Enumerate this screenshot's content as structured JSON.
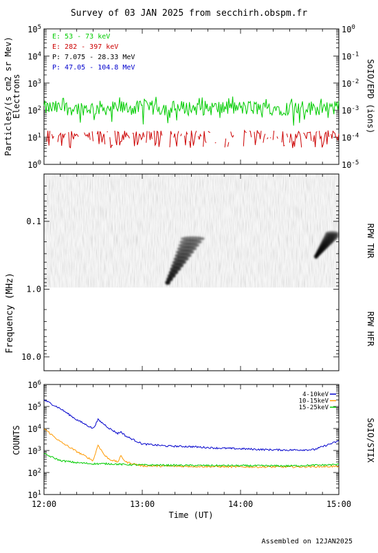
{
  "title": "Survey of 03 JAN 2025 from secchirh.obspm.fr",
  "footer": "Assembled on  12JAN2025",
  "colors": {
    "green": "#00cc00",
    "red": "#cc0000",
    "black": "#000000",
    "blue": "#0000cc",
    "orange": "#ff9900"
  },
  "chart_data": [
    {
      "type": "line",
      "name": "SoIO/EPD",
      "ylabel_left": "Particles/(s cm2 sr Mev)",
      "ylabel_left2": "Electrons",
      "ylabel_right": "SoIO/EPD (ions)",
      "y_scale": "log",
      "ylim_left": [
        1,
        100000
      ],
      "ylim_right": [
        1e-05,
        1
      ],
      "left_ticks": [
        {
          "base": "10",
          "exp": "0",
          "value": 1
        },
        {
          "base": "10",
          "exp": "1",
          "value": 10
        },
        {
          "base": "10",
          "exp": "2",
          "value": 100
        },
        {
          "base": "10",
          "exp": "3",
          "value": 1000
        },
        {
          "base": "10",
          "exp": "4",
          "value": 10000
        },
        {
          "base": "10",
          "exp": "5",
          "value": 100000
        }
      ],
      "right_ticks": [
        {
          "base": "10",
          "exp": "-5",
          "value": 1e-05
        },
        {
          "base": "10",
          "exp": "-4",
          "value": 0.0001
        },
        {
          "base": "10",
          "exp": "-3",
          "value": 0.001
        },
        {
          "base": "10",
          "exp": "-2",
          "value": 0.01
        },
        {
          "base": "10",
          "exp": "-1",
          "value": 0.1
        },
        {
          "base": "10",
          "exp": "0",
          "value": 1
        }
      ],
      "legend": [
        {
          "label": "E: 53 - 73 keV",
          "color": "#00cc00"
        },
        {
          "label": "E: 282 - 397 keV",
          "color": "#cc0000"
        },
        {
          "label": "P: 7.075 - 28.33 MeV",
          "color": "#000000"
        },
        {
          "label": "P: 47.05 - 104.8 MeV",
          "color": "#0000cc"
        }
      ],
      "series": [
        {
          "label": "E: 53 - 73 keV",
          "color": "#00cc00",
          "typical": 120,
          "min": 25,
          "max": 320
        },
        {
          "label": "E: 282 - 397 keV",
          "color": "#cc0000",
          "typical": 7,
          "min": 4,
          "max": 18,
          "gapped": true
        }
      ]
    },
    {
      "type": "heatmap",
      "name": "RPW TNR / RPW HFR",
      "ylabel": "Frequency (MHz)",
      "y_scale": "log",
      "ylim": [
        0.02,
        16
      ],
      "yticks": [
        "0.1",
        "1.0",
        "10.0"
      ],
      "ytick_values": [
        0.1,
        1.0,
        10.0
      ],
      "right_label_top": "RPW TNR",
      "right_label_bottom": "RPW HFR",
      "tnr_range_mhz": [
        0.02,
        1.0
      ],
      "bursts": [
        {
          "start": "13:14",
          "end": "13:35",
          "freq_range_mhz": [
            0.18,
            0.8
          ]
        },
        {
          "start": "14:45",
          "end": "15:00",
          "freq_range_mhz": [
            0.15,
            0.33
          ]
        }
      ]
    },
    {
      "type": "line",
      "name": "SoIO/STIX",
      "ylabel": "COUNTS",
      "right_label": "SoIO/STIX",
      "y_scale": "log",
      "ylim": [
        10,
        1000000
      ],
      "yticks": [
        {
          "base": "10",
          "exp": "1",
          "value": 10
        },
        {
          "base": "10",
          "exp": "2",
          "value": 100
        },
        {
          "base": "10",
          "exp": "3",
          "value": 1000
        },
        {
          "base": "10",
          "exp": "4",
          "value": 10000
        },
        {
          "base": "10",
          "exp": "5",
          "value": 100000
        },
        {
          "base": "10",
          "exp": "6",
          "value": 1000000
        }
      ],
      "xlabel": "Time (UT)",
      "xlim": [
        "12:00",
        "15:00"
      ],
      "xticks": [
        "12:00",
        "13:00",
        "14:00",
        "15:00"
      ],
      "legend_placement": "top-right",
      "series": [
        {
          "name": "4-10keV",
          "color": "#0000cc",
          "x": [
            "12:00",
            "12:10",
            "12:20",
            "12:30",
            "12:33",
            "12:37",
            "12:40",
            "12:45",
            "12:47",
            "12:50",
            "13:00",
            "13:15",
            "13:30",
            "13:45",
            "14:00",
            "14:15",
            "14:30",
            "14:45",
            "14:53",
            "15:00"
          ],
          "values": [
            200000,
            80000,
            25000,
            10000,
            25000,
            15000,
            10000,
            6000,
            7000,
            4500,
            2000,
            1600,
            1500,
            1300,
            1200,
            1100,
            1050,
            1100,
            1800,
            2700
          ]
        },
        {
          "name": "10-15keV",
          "color": "#ff9900",
          "x": [
            "12:00",
            "12:10",
            "12:20",
            "12:30",
            "12:33",
            "12:37",
            "12:40",
            "12:45",
            "12:47",
            "12:50",
            "13:00",
            "13:30",
            "14:00",
            "14:30",
            "15:00"
          ],
          "values": [
            10000,
            2500,
            900,
            350,
            1800,
            600,
            400,
            300,
            550,
            300,
            200,
            190,
            180,
            180,
            190
          ]
        },
        {
          "name": "15-25keV",
          "color": "#00cc00",
          "x": [
            "12:00",
            "12:10",
            "12:20",
            "12:30",
            "12:40",
            "12:50",
            "13:00",
            "13:30",
            "14:00",
            "14:30",
            "15:00"
          ],
          "values": [
            700,
            350,
            280,
            250,
            250,
            230,
            220,
            210,
            205,
            200,
            230
          ]
        }
      ]
    }
  ]
}
